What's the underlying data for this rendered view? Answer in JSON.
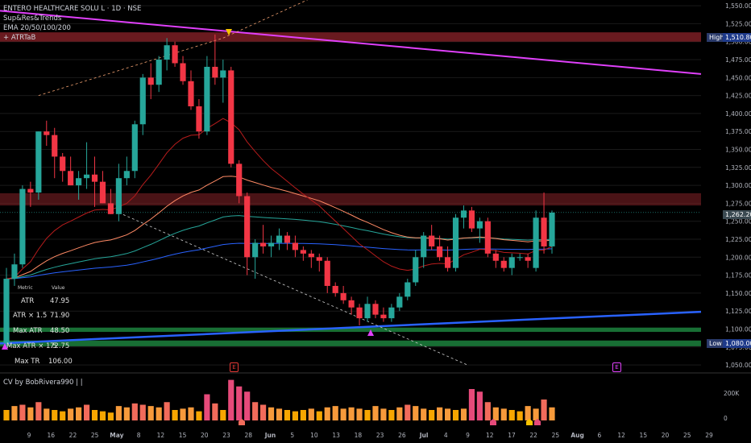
{
  "header": {
    "symbol_line": "ENTERO HEALTHCARE SOLU L · 1D · NSE",
    "indicator_1": "Sup&Res&Trends",
    "indicator_2": "EMA 20/50/100/200",
    "indicator_3": "+ ATRTaB"
  },
  "atr_table": {
    "header_metric": "Metric",
    "header_value": "Value",
    "rows": [
      {
        "label": "ATR",
        "value": "47.95"
      },
      {
        "label": "ATR × 1.5",
        "value": "71.90"
      },
      {
        "label": "Max ATR",
        "value": "48.50"
      },
      {
        "label": "Max ATR × 1.5",
        "value": "72.75"
      },
      {
        "label": "Max TR",
        "value": "106.00"
      }
    ]
  },
  "volume_panel": {
    "title": "CV by BobRivera990 | |",
    "y_labels": [
      "200K",
      "0"
    ]
  },
  "price_tags": {
    "high_label": "High",
    "high_value": "1,510.80",
    "current_value": "1,262.20",
    "low_label": "Low",
    "low_value": "1,080.00"
  },
  "earnings_marker": "E",
  "colors": {
    "background": "#000000",
    "up": "#26a69a",
    "down": "#f23645",
    "grid": "#1a1a1a",
    "trend_magenta": "#e040fb",
    "trend_blue": "#2962ff",
    "ema20": "#b71c1c",
    "ema50": "#ff8a65",
    "ema100": "#26a69a",
    "ema200": "#2962ff",
    "resistance_zone": "#7b1f24",
    "support_zone": "#1b7a3a"
  },
  "chart_data": {
    "type": "candlestick",
    "title": "ENTERO HEALTHCARE SOLU L · 1D · NSE",
    "y_axis_ticks": [
      1050,
      1075,
      1100,
      1125,
      1150,
      1175,
      1200,
      1225,
      1250,
      1275,
      1300,
      1325,
      1350,
      1375,
      1400,
      1425,
      1450,
      1475,
      1500,
      1525,
      1550
    ],
    "ylim": [
      1040,
      1558
    ],
    "x_axis_labels": [
      "9",
      "16",
      "22",
      "25",
      "May",
      "8",
      "12",
      "15",
      "20",
      "23",
      "28",
      "Jun",
      "5",
      "10",
      "13",
      "18",
      "23",
      "26",
      "Jul",
      "4",
      "9",
      "12",
      "17",
      "22",
      "25",
      "Aug",
      "6",
      "12",
      "15",
      "20",
      "25",
      "29"
    ],
    "candles": [
      {
        "o": 1080,
        "h": 1185,
        "l": 1075,
        "c": 1170
      },
      {
        "o": 1170,
        "h": 1205,
        "l": 1160,
        "c": 1190
      },
      {
        "o": 1190,
        "h": 1300,
        "l": 1185,
        "c": 1295
      },
      {
        "o": 1295,
        "h": 1305,
        "l": 1270,
        "c": 1290
      },
      {
        "o": 1290,
        "h": 1375,
        "l": 1280,
        "c": 1375
      },
      {
        "o": 1375,
        "h": 1390,
        "l": 1355,
        "c": 1370
      },
      {
        "o": 1370,
        "h": 1380,
        "l": 1310,
        "c": 1340
      },
      {
        "o": 1340,
        "h": 1345,
        "l": 1305,
        "c": 1320
      },
      {
        "o": 1320,
        "h": 1340,
        "l": 1300,
        "c": 1300
      },
      {
        "o": 1300,
        "h": 1320,
        "l": 1280,
        "c": 1310
      },
      {
        "o": 1310,
        "h": 1360,
        "l": 1295,
        "c": 1315
      },
      {
        "o": 1315,
        "h": 1340,
        "l": 1270,
        "c": 1305
      },
      {
        "o": 1305,
        "h": 1320,
        "l": 1275,
        "c": 1275
      },
      {
        "o": 1275,
        "h": 1295,
        "l": 1260,
        "c": 1260
      },
      {
        "o": 1260,
        "h": 1330,
        "l": 1250,
        "c": 1310
      },
      {
        "o": 1310,
        "h": 1340,
        "l": 1300,
        "c": 1320
      },
      {
        "o": 1320,
        "h": 1390,
        "l": 1310,
        "c": 1385
      },
      {
        "o": 1385,
        "h": 1455,
        "l": 1370,
        "c": 1450
      },
      {
        "o": 1450,
        "h": 1470,
        "l": 1420,
        "c": 1440
      },
      {
        "o": 1440,
        "h": 1480,
        "l": 1430,
        "c": 1475
      },
      {
        "o": 1475,
        "h": 1505,
        "l": 1460,
        "c": 1495
      },
      {
        "o": 1495,
        "h": 1500,
        "l": 1465,
        "c": 1470
      },
      {
        "o": 1470,
        "h": 1480,
        "l": 1440,
        "c": 1445
      },
      {
        "o": 1445,
        "h": 1460,
        "l": 1405,
        "c": 1410
      },
      {
        "o": 1410,
        "h": 1420,
        "l": 1365,
        "c": 1375
      },
      {
        "o": 1375,
        "h": 1480,
        "l": 1370,
        "c": 1465
      },
      {
        "o": 1465,
        "h": 1510,
        "l": 1440,
        "c": 1450
      },
      {
        "o": 1450,
        "h": 1475,
        "l": 1415,
        "c": 1460
      },
      {
        "o": 1460,
        "h": 1465,
        "l": 1325,
        "c": 1330
      },
      {
        "o": 1330,
        "h": 1335,
        "l": 1275,
        "c": 1285
      },
      {
        "o": 1285,
        "h": 1290,
        "l": 1175,
        "c": 1200
      },
      {
        "o": 1200,
        "h": 1225,
        "l": 1170,
        "c": 1220
      },
      {
        "o": 1220,
        "h": 1245,
        "l": 1205,
        "c": 1215
      },
      {
        "o": 1215,
        "h": 1230,
        "l": 1200,
        "c": 1220
      },
      {
        "o": 1220,
        "h": 1240,
        "l": 1210,
        "c": 1230
      },
      {
        "o": 1230,
        "h": 1235,
        "l": 1210,
        "c": 1220
      },
      {
        "o": 1220,
        "h": 1230,
        "l": 1200,
        "c": 1210
      },
      {
        "o": 1210,
        "h": 1215,
        "l": 1195,
        "c": 1205
      },
      {
        "o": 1205,
        "h": 1210,
        "l": 1185,
        "c": 1200
      },
      {
        "o": 1200,
        "h": 1205,
        "l": 1180,
        "c": 1195
      },
      {
        "o": 1195,
        "h": 1200,
        "l": 1150,
        "c": 1160
      },
      {
        "o": 1160,
        "h": 1165,
        "l": 1145,
        "c": 1150
      },
      {
        "o": 1150,
        "h": 1160,
        "l": 1135,
        "c": 1140
      },
      {
        "o": 1140,
        "h": 1145,
        "l": 1120,
        "c": 1130
      },
      {
        "o": 1130,
        "h": 1135,
        "l": 1105,
        "c": 1115
      },
      {
        "o": 1115,
        "h": 1145,
        "l": 1110,
        "c": 1135
      },
      {
        "o": 1135,
        "h": 1140,
        "l": 1115,
        "c": 1120
      },
      {
        "o": 1120,
        "h": 1130,
        "l": 1110,
        "c": 1115
      },
      {
        "o": 1115,
        "h": 1135,
        "l": 1110,
        "c": 1130
      },
      {
        "o": 1130,
        "h": 1150,
        "l": 1125,
        "c": 1145
      },
      {
        "o": 1145,
        "h": 1170,
        "l": 1140,
        "c": 1165
      },
      {
        "o": 1165,
        "h": 1210,
        "l": 1160,
        "c": 1200
      },
      {
        "o": 1200,
        "h": 1235,
        "l": 1185,
        "c": 1230
      },
      {
        "o": 1230,
        "h": 1245,
        "l": 1210,
        "c": 1215
      },
      {
        "o": 1215,
        "h": 1230,
        "l": 1195,
        "c": 1200
      },
      {
        "o": 1200,
        "h": 1215,
        "l": 1180,
        "c": 1185
      },
      {
        "o": 1185,
        "h": 1260,
        "l": 1180,
        "c": 1255
      },
      {
        "o": 1255,
        "h": 1272,
        "l": 1240,
        "c": 1265
      },
      {
        "o": 1265,
        "h": 1270,
        "l": 1235,
        "c": 1240
      },
      {
        "o": 1240,
        "h": 1255,
        "l": 1220,
        "c": 1250
      },
      {
        "o": 1250,
        "h": 1255,
        "l": 1200,
        "c": 1205
      },
      {
        "o": 1205,
        "h": 1210,
        "l": 1185,
        "c": 1195
      },
      {
        "o": 1195,
        "h": 1200,
        "l": 1180,
        "c": 1185
      },
      {
        "o": 1185,
        "h": 1205,
        "l": 1175,
        "c": 1200
      },
      {
        "o": 1200,
        "h": 1205,
        "l": 1195,
        "c": 1200
      },
      {
        "o": 1200,
        "h": 1205,
        "l": 1185,
        "c": 1195
      },
      {
        "o": 1185,
        "h": 1265,
        "l": 1180,
        "c": 1255
      },
      {
        "o": 1255,
        "h": 1290,
        "l": 1205,
        "c": 1215
      },
      {
        "o": 1215,
        "h": 1265,
        "l": 1205,
        "c": 1262
      }
    ],
    "volume": [
      40,
      55,
      60,
      50,
      70,
      45,
      40,
      35,
      45,
      50,
      60,
      40,
      35,
      30,
      55,
      50,
      65,
      60,
      55,
      50,
      70,
      40,
      45,
      50,
      35,
      100,
      65,
      40,
      155,
      130,
      110,
      70,
      60,
      50,
      45,
      40,
      35,
      40,
      45,
      35,
      50,
      55,
      45,
      50,
      45,
      40,
      55,
      45,
      40,
      50,
      60,
      55,
      45,
      40,
      50,
      45,
      40,
      45,
      120,
      110,
      70,
      50,
      45,
      40,
      35,
      55,
      45,
      80,
      50
    ],
    "levels": {
      "high": 1510.8,
      "current": 1262.2,
      "low": 1080.0
    }
  }
}
